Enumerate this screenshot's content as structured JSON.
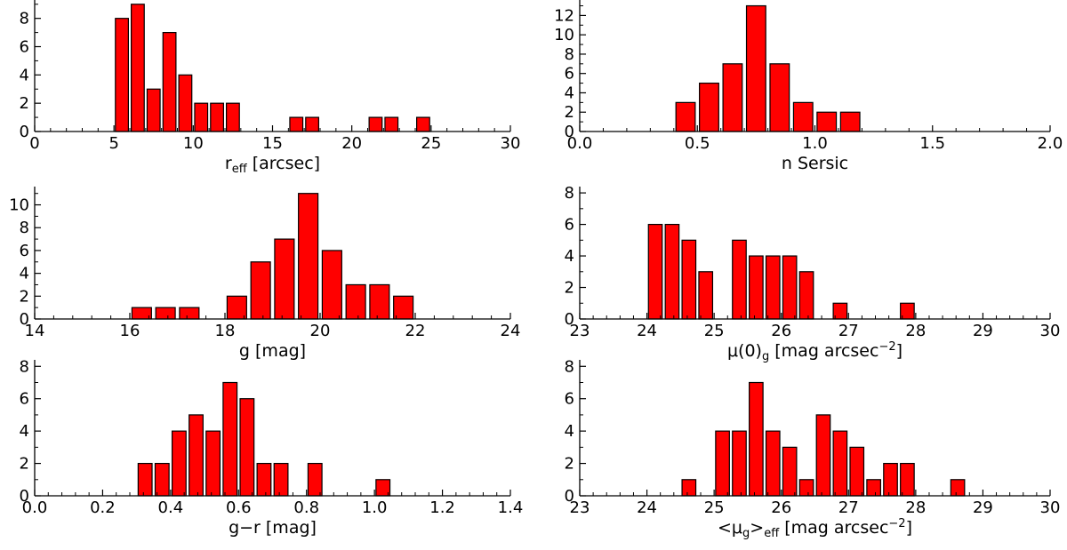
{
  "chart_data": [
    {
      "type": "bar",
      "xlabel_parts": [
        "r",
        "eff",
        " [arcsec]"
      ],
      "xlim": [
        0,
        30
      ],
      "ylim": [
        0,
        9.3
      ],
      "xticks": [
        0,
        5,
        10,
        15,
        20,
        25,
        30
      ],
      "xtick_labels": [
        "0",
        "5",
        "10",
        "15",
        "20",
        "25",
        "30"
      ],
      "yticks": [
        0,
        2,
        4,
        6,
        8
      ],
      "ytick_labels": [
        "0",
        "2",
        "4",
        "6",
        "8"
      ],
      "bars": [
        {
          "x": 5.5,
          "value": 8
        },
        {
          "x": 6.5,
          "value": 9
        },
        {
          "x": 7.5,
          "value": 3
        },
        {
          "x": 8.5,
          "value": 7
        },
        {
          "x": 9.5,
          "value": 4
        },
        {
          "x": 10.5,
          "value": 2
        },
        {
          "x": 11.5,
          "value": 2
        },
        {
          "x": 12.5,
          "value": 2
        },
        {
          "x": 16.5,
          "value": 1
        },
        {
          "x": 17.5,
          "value": 1
        },
        {
          "x": 21.5,
          "value": 1
        },
        {
          "x": 22.5,
          "value": 1
        },
        {
          "x": 24.5,
          "value": 1
        }
      ],
      "bin_width": 1
    },
    {
      "type": "bar",
      "xlabel_parts": [
        "n Sersic"
      ],
      "xlim": [
        0,
        2
      ],
      "ylim": [
        0,
        13.6
      ],
      "xticks": [
        0,
        0.5,
        1,
        1.5,
        2
      ],
      "xtick_labels": [
        "0.0",
        "0.5",
        "1.0",
        "1.5",
        "2.0"
      ],
      "yticks": [
        0,
        2,
        4,
        6,
        8,
        10,
        12
      ],
      "ytick_labels": [
        "0",
        "2",
        "4",
        "6",
        "8",
        "10",
        "12"
      ],
      "bars": [
        {
          "x": 0.45,
          "value": 3
        },
        {
          "x": 0.55,
          "value": 5
        },
        {
          "x": 0.65,
          "value": 7
        },
        {
          "x": 0.75,
          "value": 13
        },
        {
          "x": 0.85,
          "value": 7
        },
        {
          "x": 0.95,
          "value": 3
        },
        {
          "x": 1.05,
          "value": 2
        },
        {
          "x": 1.15,
          "value": 2
        }
      ],
      "bin_width": 0.1
    },
    {
      "type": "bar",
      "xlabel_parts": [
        "g [mag]"
      ],
      "xlim": [
        14,
        24
      ],
      "ylim": [
        0,
        11.6
      ],
      "xticks": [
        14,
        16,
        18,
        20,
        22,
        24
      ],
      "xtick_labels": [
        "14",
        "16",
        "18",
        "20",
        "22",
        "24"
      ],
      "yticks": [
        0,
        2,
        4,
        6,
        8,
        10
      ],
      "ytick_labels": [
        "0",
        "2",
        "4",
        "6",
        "8",
        "10"
      ],
      "bars": [
        {
          "x": 16.25,
          "value": 1
        },
        {
          "x": 16.75,
          "value": 1
        },
        {
          "x": 17.25,
          "value": 1
        },
        {
          "x": 18.25,
          "value": 2
        },
        {
          "x": 18.75,
          "value": 5
        },
        {
          "x": 19.25,
          "value": 7
        },
        {
          "x": 19.75,
          "value": 11
        },
        {
          "x": 20.25,
          "value": 6
        },
        {
          "x": 20.75,
          "value": 3
        },
        {
          "x": 21.25,
          "value": 3
        },
        {
          "x": 21.75,
          "value": 2
        }
      ],
      "bin_width": 0.5
    },
    {
      "type": "bar",
      "xlabel_parts": [
        "μ(0)",
        "g",
        " [mag arcsec",
        "−2",
        "]"
      ],
      "xlim": [
        23,
        30
      ],
      "ylim": [
        0,
        8.4
      ],
      "xticks": [
        23,
        24,
        25,
        26,
        27,
        28,
        29,
        30
      ],
      "xtick_labels": [
        "23",
        "24",
        "25",
        "26",
        "27",
        "28",
        "29",
        "30"
      ],
      "yticks": [
        0,
        2,
        4,
        6,
        8
      ],
      "ytick_labels": [
        "0",
        "2",
        "4",
        "6",
        "8"
      ],
      "bars": [
        {
          "x": 24.125,
          "value": 6
        },
        {
          "x": 24.375,
          "value": 6
        },
        {
          "x": 24.625,
          "value": 5
        },
        {
          "x": 24.875,
          "value": 3
        },
        {
          "x": 25.375,
          "value": 5
        },
        {
          "x": 25.625,
          "value": 4
        },
        {
          "x": 25.875,
          "value": 4
        },
        {
          "x": 26.125,
          "value": 4
        },
        {
          "x": 26.375,
          "value": 3
        },
        {
          "x": 26.875,
          "value": 1
        },
        {
          "x": 27.875,
          "value": 1
        }
      ],
      "bin_width": 0.25
    },
    {
      "type": "bar",
      "xlabel_parts": [
        "g−r [mag]"
      ],
      "xlim": [
        0,
        1.4
      ],
      "ylim": [
        0,
        8.4
      ],
      "xticks": [
        0,
        0.2,
        0.4,
        0.6,
        0.8,
        1.0,
        1.2,
        1.4
      ],
      "xtick_labels": [
        "0.0",
        "0.2",
        "0.4",
        "0.6",
        "0.8",
        "1.0",
        "1.2",
        "1.4"
      ],
      "yticks": [
        0,
        2,
        4,
        6,
        8
      ],
      "ytick_labels": [
        "0",
        "2",
        "4",
        "6",
        "8"
      ],
      "bars": [
        {
          "x": 0.325,
          "value": 2
        },
        {
          "x": 0.375,
          "value": 2
        },
        {
          "x": 0.425,
          "value": 4
        },
        {
          "x": 0.475,
          "value": 5
        },
        {
          "x": 0.525,
          "value": 4
        },
        {
          "x": 0.575,
          "value": 7
        },
        {
          "x": 0.625,
          "value": 6
        },
        {
          "x": 0.675,
          "value": 2
        },
        {
          "x": 0.725,
          "value": 2
        },
        {
          "x": 0.825,
          "value": 2
        },
        {
          "x": 1.025,
          "value": 1
        }
      ],
      "bin_width": 0.05
    },
    {
      "type": "bar",
      "xlabel_parts": [
        "<μ",
        "g",
        ">",
        "eff",
        " [mag arcsec",
        "−2",
        "]"
      ],
      "xlim": [
        23,
        30
      ],
      "ylim": [
        0,
        8.4
      ],
      "xticks": [
        23,
        24,
        25,
        26,
        27,
        28,
        29,
        30
      ],
      "xtick_labels": [
        "23",
        "24",
        "25",
        "26",
        "27",
        "28",
        "29",
        "30"
      ],
      "yticks": [
        0,
        2,
        4,
        6,
        8
      ],
      "ytick_labels": [
        "0",
        "2",
        "4",
        "6",
        "8"
      ],
      "bars": [
        {
          "x": 24.625,
          "value": 1
        },
        {
          "x": 25.125,
          "value": 4
        },
        {
          "x": 25.375,
          "value": 4
        },
        {
          "x": 25.625,
          "value": 7
        },
        {
          "x": 25.875,
          "value": 4
        },
        {
          "x": 26.125,
          "value": 3
        },
        {
          "x": 26.375,
          "value": 1
        },
        {
          "x": 26.625,
          "value": 5
        },
        {
          "x": 26.875,
          "value": 4
        },
        {
          "x": 27.125,
          "value": 3
        },
        {
          "x": 27.375,
          "value": 1
        },
        {
          "x": 27.625,
          "value": 2
        },
        {
          "x": 27.875,
          "value": 2
        },
        {
          "x": 28.625,
          "value": 1
        }
      ],
      "bin_width": 0.25
    }
  ],
  "style": {
    "bar_fill": "#ff0000",
    "bar_edge": "#000000",
    "axis_color": "#000000"
  }
}
